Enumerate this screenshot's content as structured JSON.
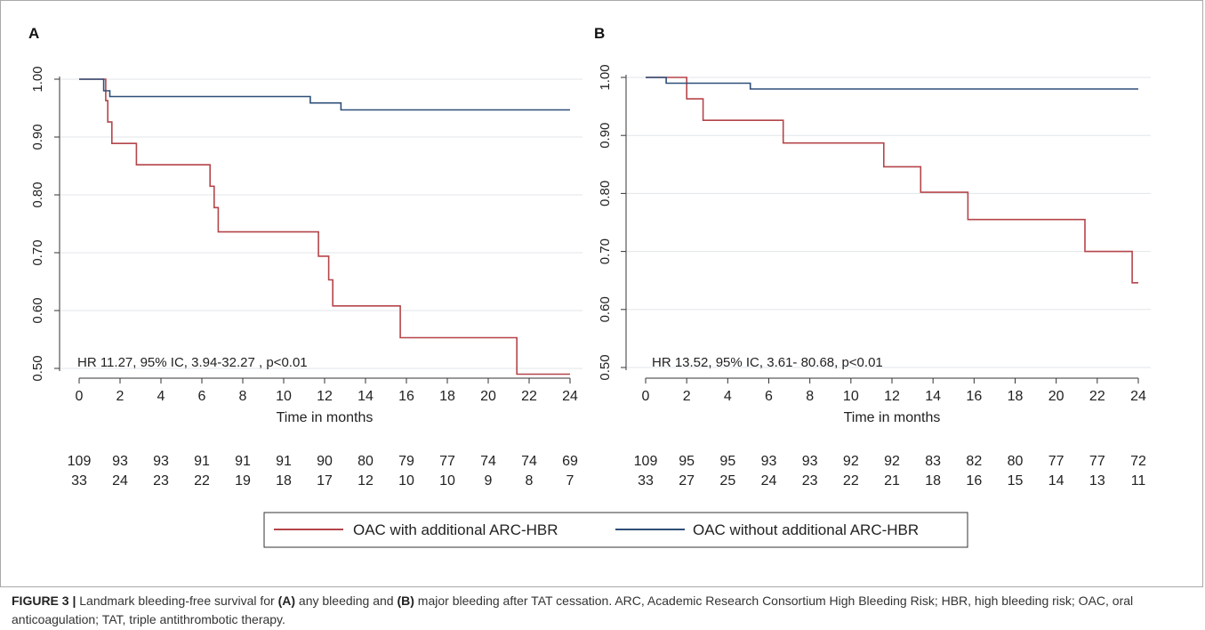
{
  "chart_data": [
    {
      "type": "line",
      "panel_label": "A",
      "xlabel": "Time in months",
      "ylabel": "",
      "xlim": [
        0,
        24
      ],
      "ylim": [
        0.5,
        1.0
      ],
      "x_ticks": [
        "0",
        "2",
        "4",
        "6",
        "8",
        "10",
        "12",
        "14",
        "16",
        "18",
        "20",
        "22",
        "24"
      ],
      "y_ticks": [
        "0.50",
        "0.60",
        "0.70",
        "0.80",
        "0.90",
        "1.00"
      ],
      "grid": "horizontal",
      "annotation": "HR 11.27, 95% IC, 3.94-32.27 , p<0.01",
      "series": [
        {
          "name": "OAC with additional ARC-HBR",
          "color": "#b5454a",
          "step": true,
          "points": [
            [
              0,
              1.0
            ],
            [
              1.3,
              1.0
            ],
            [
              1.3,
              0.963
            ],
            [
              1.4,
              0.963
            ],
            [
              1.4,
              0.926
            ],
            [
              1.6,
              0.926
            ],
            [
              1.6,
              0.889
            ],
            [
              2.8,
              0.889
            ],
            [
              2.8,
              0.852
            ],
            [
              6.4,
              0.852
            ],
            [
              6.4,
              0.815
            ],
            [
              6.6,
              0.815
            ],
            [
              6.6,
              0.778
            ],
            [
              6.8,
              0.778
            ],
            [
              6.8,
              0.736
            ],
            [
              11.7,
              0.736
            ],
            [
              11.7,
              0.694
            ],
            [
              12.2,
              0.694
            ],
            [
              12.2,
              0.653
            ],
            [
              12.4,
              0.653
            ],
            [
              12.4,
              0.608
            ],
            [
              15.7,
              0.608
            ],
            [
              15.7,
              0.553
            ],
            [
              21.4,
              0.553
            ],
            [
              21.4,
              0.49
            ],
            [
              24,
              0.49
            ]
          ]
        },
        {
          "name": "OAC without additional ARC-HBR",
          "color": "#2f4f78",
          "step": true,
          "points": [
            [
              0,
              1.0
            ],
            [
              1.2,
              1.0
            ],
            [
              1.2,
              0.98
            ],
            [
              1.5,
              0.98
            ],
            [
              1.5,
              0.97
            ],
            [
              11.3,
              0.97
            ],
            [
              11.3,
              0.959
            ],
            [
              12.8,
              0.959
            ],
            [
              12.8,
              0.947
            ],
            [
              24,
              0.947
            ]
          ]
        }
      ],
      "risk_table": {
        "times": [
          0,
          2,
          4,
          6,
          8,
          10,
          12,
          14,
          16,
          18,
          20,
          22,
          24
        ],
        "rows": [
          [
            "109",
            "93",
            "93",
            "91",
            "91",
            "91",
            "90",
            "80",
            "79",
            "77",
            "74",
            "74",
            "69"
          ],
          [
            "33",
            "24",
            "23",
            "22",
            "19",
            "18",
            "17",
            "12",
            "10",
            "10",
            "9",
            "8",
            "7"
          ]
        ]
      }
    },
    {
      "type": "line",
      "panel_label": "B",
      "xlabel": "Time in months",
      "ylabel": "",
      "xlim": [
        0,
        24
      ],
      "ylim": [
        0.5,
        1.0
      ],
      "x_ticks": [
        "0",
        "2",
        "4",
        "6",
        "8",
        "10",
        "12",
        "14",
        "16",
        "18",
        "20",
        "22",
        "24"
      ],
      "y_ticks": [
        "0.50",
        "0.60",
        "0.70",
        "0.80",
        "0.90",
        "1.00"
      ],
      "grid": "horizontal",
      "annotation": "HR 13.52, 95% IC, 3.61- 80.68, p<0.01",
      "series": [
        {
          "name": "OAC with additional ARC-HBR",
          "color": "#b5454a",
          "step": true,
          "points": [
            [
              0,
              1.0
            ],
            [
              2.0,
              1.0
            ],
            [
              2.0,
              0.963
            ],
            [
              2.8,
              0.963
            ],
            [
              2.8,
              0.926
            ],
            [
              6.7,
              0.926
            ],
            [
              6.7,
              0.887
            ],
            [
              11.6,
              0.887
            ],
            [
              11.6,
              0.846
            ],
            [
              13.4,
              0.846
            ],
            [
              13.4,
              0.802
            ],
            [
              15.7,
              0.802
            ],
            [
              15.7,
              0.755
            ],
            [
              21.4,
              0.755
            ],
            [
              21.4,
              0.7
            ],
            [
              23.7,
              0.7
            ],
            [
              23.7,
              0.646
            ],
            [
              24,
              0.646
            ]
          ]
        },
        {
          "name": "OAC without additional ARC-HBR",
          "color": "#2f4f78",
          "step": true,
          "points": [
            [
              0,
              1.0
            ],
            [
              1.0,
              1.0
            ],
            [
              1.0,
              0.99
            ],
            [
              5.1,
              0.99
            ],
            [
              5.1,
              0.98
            ],
            [
              24,
              0.98
            ]
          ]
        }
      ],
      "risk_table": {
        "times": [
          0,
          2,
          4,
          6,
          8,
          10,
          12,
          14,
          16,
          18,
          20,
          22,
          24
        ],
        "rows": [
          [
            "109",
            "95",
            "95",
            "93",
            "93",
            "92",
            "92",
            "83",
            "82",
            "80",
            "77",
            "77",
            "72"
          ],
          [
            "33",
            "27",
            "25",
            "24",
            "23",
            "22",
            "21",
            "18",
            "16",
            "15",
            "14",
            "13",
            "11"
          ]
        ]
      }
    }
  ],
  "legend": {
    "position": "bottom-center",
    "items": [
      {
        "label": "OAC with additional ARC-HBR",
        "color": "#b5454a"
      },
      {
        "label": "OAC without additional ARC-HBR",
        "color": "#2f4f78"
      }
    ]
  },
  "caption": {
    "figure_label": "FIGURE 3 |",
    "text_1": " Landmark bleeding-free survival for ",
    "bold_a": "(A)",
    "text_2": " any bleeding and ",
    "bold_b": "(B)",
    "text_3": " major bleeding after TAT cessation. ARC, Academic Research Consortium High Bleeding Risk; HBR, high bleeding risk; OAC, oral anticoagulation; TAT, triple antithrombotic therapy."
  }
}
